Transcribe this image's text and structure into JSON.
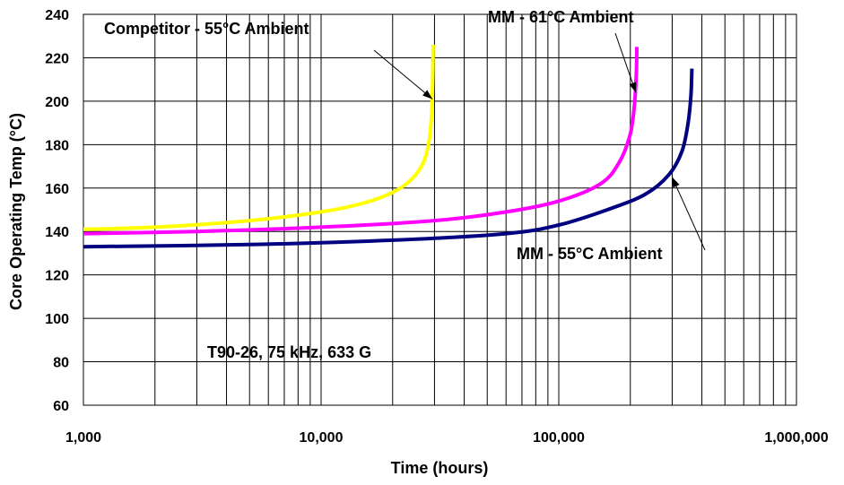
{
  "chart_data": {
    "type": "line",
    "xscale": "log",
    "xlim": [
      1000,
      1000000
    ],
    "ylim": [
      60,
      240
    ],
    "xlabel": "Time (hours)",
    "ylabel": "Core Operating Temp (°C)",
    "x_ticks": [
      "1,000",
      "10,000",
      "100,000",
      "1,000,000"
    ],
    "y_ticks": [
      "60",
      "80",
      "100",
      "120",
      "140",
      "160",
      "180",
      "200",
      "220",
      "240"
    ],
    "grid": true,
    "legend": "none",
    "series": [
      {
        "name": "Competitor - 55°C Ambient",
        "color": "#ffff00",
        "x": [
          1000,
          2000,
          5000,
          10000,
          15000,
          20000,
          24000,
          27000,
          28500,
          29200,
          29500,
          29600
        ],
        "y": [
          141,
          142,
          145,
          149,
          153,
          158,
          164,
          172,
          182,
          195,
          212,
          226
        ]
      },
      {
        "name": "MM - 61°C Ambient",
        "color": "#ff00ff",
        "x": [
          1000,
          3000,
          10000,
          30000,
          60000,
          100000,
          150000,
          180000,
          200000,
          208000,
          212000,
          213000
        ],
        "y": [
          139,
          140,
          142,
          145,
          149,
          154,
          162,
          172,
          185,
          198,
          213,
          225
        ]
      },
      {
        "name": "MM - 55°C Ambient",
        "color": "#000080",
        "x": [
          1000,
          5000,
          20000,
          60000,
          100000,
          160000,
          230000,
          290000,
          330000,
          350000,
          360000,
          363000
        ],
        "y": [
          133,
          134,
          136,
          139,
          143,
          150,
          157,
          166,
          177,
          190,
          203,
          215
        ]
      }
    ],
    "annotations": [
      {
        "text": "Competitor - 55°C Ambient",
        "target": [
          29400,
          201
        ]
      },
      {
        "text": "MM - 61°C Ambient",
        "target": [
          211000,
          204
        ]
      },
      {
        "text": "MM - 55°C Ambient",
        "target": [
          300000,
          165
        ]
      },
      {
        "text": "T90-26, 75 kHz, 633 G"
      }
    ]
  }
}
